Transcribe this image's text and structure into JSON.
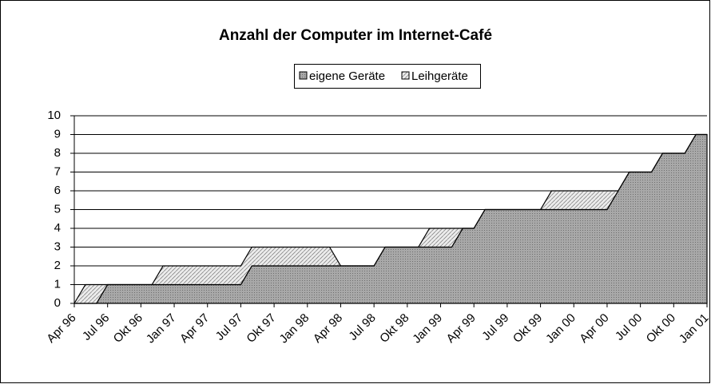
{
  "chart_data": {
    "type": "stacked_area",
    "title": "Anzahl der Computer im Internet-Café",
    "categories": [
      "Apr 96",
      null,
      null,
      "Jul 96",
      null,
      null,
      "Okt 96",
      null,
      null,
      "Jan 97",
      null,
      null,
      "Apr 97",
      null,
      null,
      "Jul 97",
      null,
      null,
      "Okt 97",
      null,
      null,
      "Jan 98",
      null,
      null,
      "Apr 98",
      null,
      null,
      "Jul 98",
      null,
      null,
      "Okt 98",
      null,
      null,
      "Jan 99",
      null,
      null,
      "Apr 99",
      null,
      null,
      "Jul 99",
      null,
      null,
      "Okt 99",
      null,
      null,
      "Jan 00",
      null,
      null,
      "Apr 00",
      null,
      null,
      "Jul 00",
      null,
      null,
      "Okt 00",
      null,
      null,
      "Jan 01"
    ],
    "series": [
      {
        "name": "eigene Geräte",
        "color": "#9a9a9a",
        "values": [
          0,
          0,
          0,
          1,
          1,
          1,
          1,
          1,
          1,
          1,
          1,
          1,
          1,
          1,
          1,
          1,
          2,
          2,
          2,
          2,
          2,
          2,
          2,
          2,
          2,
          2,
          2,
          2,
          3,
          3,
          3,
          3,
          3,
          3,
          3,
          4,
          4,
          5,
          5,
          5,
          5,
          5,
          5,
          5,
          5,
          5,
          5,
          5,
          5,
          6,
          7,
          7,
          7,
          8,
          8,
          8,
          9,
          9
        ]
      },
      {
        "name": "Leihgeräte",
        "color": "#dcdcdc",
        "values": [
          0,
          1,
          1,
          0,
          0,
          0,
          0,
          0,
          1,
          1,
          1,
          1,
          1,
          1,
          1,
          1,
          1,
          1,
          1,
          1,
          1,
          1,
          1,
          1,
          0,
          0,
          0,
          0,
          0,
          0,
          0,
          0,
          1,
          1,
          1,
          0,
          0,
          0,
          0,
          0,
          0,
          0,
          0,
          1,
          1,
          1,
          1,
          1,
          1,
          0,
          0,
          0,
          0,
          0,
          0,
          0,
          0,
          0
        ]
      }
    ],
    "ylim": [
      0,
      10
    ],
    "yticks": [
      0,
      1,
      2,
      3,
      4,
      5,
      6,
      7,
      8,
      9,
      10
    ],
    "grid": true,
    "legend": "top"
  }
}
